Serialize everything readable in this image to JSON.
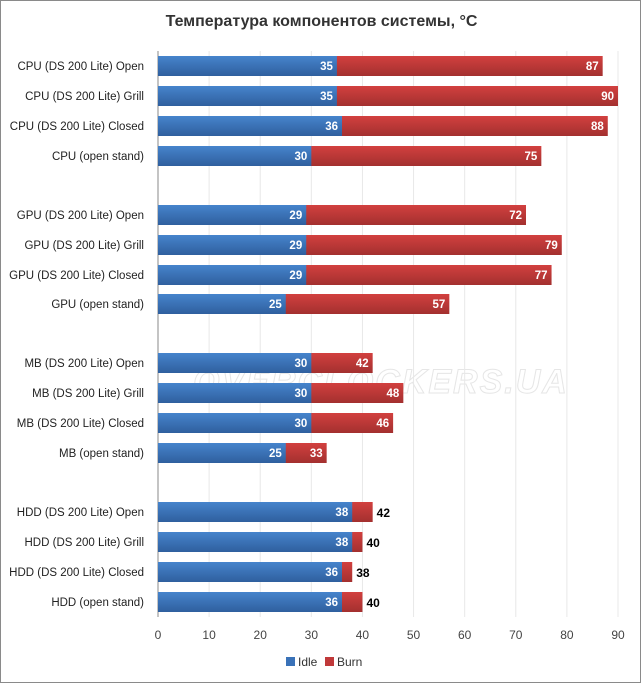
{
  "chart_data": {
    "type": "bar",
    "orientation": "horizontal",
    "title": "Температура компонентов системы, °C",
    "categories": [
      "CPU (DS 200 Lite) Open",
      "CPU (DS 200 Lite) Grill",
      "CPU (DS 200 Lite) Closed",
      "CPU (open stand)",
      "GPU (DS 200 Lite) Open",
      "GPU (DS 200 Lite) Grill",
      "GPU (DS 200 Lite) Closed",
      "GPU (open stand)",
      "MB (DS 200 Lite) Open",
      "MB (DS 200 Lite) Grill",
      "MB (DS 200 Lite) Closed",
      "MB (open stand)",
      "HDD (DS 200 Lite) Open",
      "HDD (DS 200 Lite) Grill",
      "HDD (DS 200 Lite) Closed",
      "HDD (open stand)"
    ],
    "series": [
      {
        "name": "Idle",
        "color": "#3a72b8",
        "values": [
          35,
          35,
          36,
          30,
          29,
          29,
          29,
          25,
          30,
          30,
          30,
          25,
          38,
          38,
          36,
          36
        ]
      },
      {
        "name": "Burn",
        "color": "#c0393a",
        "values": [
          87,
          90,
          88,
          75,
          72,
          79,
          77,
          57,
          42,
          48,
          46,
          33,
          42,
          40,
          38,
          40
        ]
      }
    ],
    "xlim": [
      0,
      90
    ],
    "xticks": [
      0,
      10,
      20,
      30,
      40,
      50,
      60,
      70,
      80,
      90
    ],
    "grid": true,
    "legend_position": "bottom",
    "watermark": "OVERCLOCKERS.UA"
  }
}
